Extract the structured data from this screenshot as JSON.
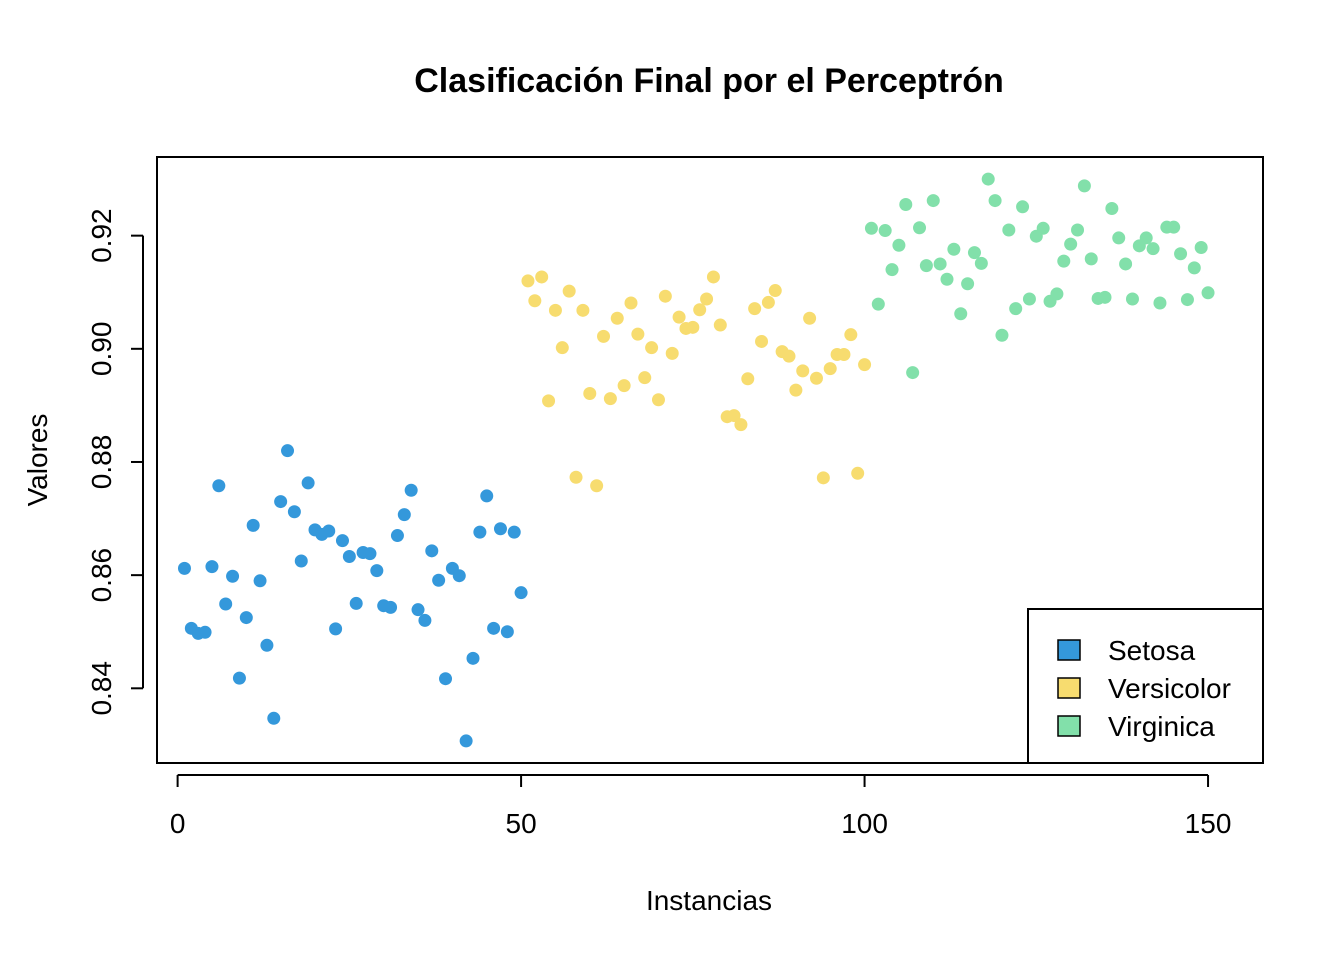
{
  "chart_data": {
    "type": "scatter",
    "title": "Clasificación Final por el Perceptrón",
    "xlabel": "Instancias",
    "ylabel": "Valores",
    "xlim": [
      -3,
      158
    ],
    "ylim": [
      0.8268,
      0.9339
    ],
    "xticks": [
      "0",
      "50",
      "100",
      "150"
    ],
    "xtick_values": [
      0,
      50,
      100,
      150
    ],
    "yticks": [
      "0.84",
      "0.86",
      "0.88",
      "0.90",
      "0.92"
    ],
    "ytick_values": [
      0.84,
      0.86,
      0.88,
      0.9,
      0.92
    ],
    "grid": false,
    "legend_position": "bottom-right",
    "series": [
      {
        "name": "Setosa",
        "color": "#3498DB",
        "x": [
          1,
          2,
          3,
          4,
          5,
          6,
          7,
          8,
          9,
          10,
          11,
          12,
          13,
          14,
          15,
          16,
          17,
          18,
          19,
          20,
          21,
          22,
          23,
          24,
          25,
          26,
          27,
          28,
          29,
          30,
          31,
          32,
          33,
          34,
          35,
          36,
          37,
          38,
          39,
          40,
          41,
          42,
          43,
          44,
          45,
          46,
          47,
          48,
          49,
          50
        ],
        "y": [
          0.8612,
          0.8506,
          0.8497,
          0.8499,
          0.8615,
          0.8758,
          0.8549,
          0.8598,
          0.8418,
          0.8525,
          0.8688,
          0.859,
          0.8476,
          0.8347,
          0.873,
          0.882,
          0.8712,
          0.8625,
          0.8763,
          0.868,
          0.8672,
          0.8678,
          0.8505,
          0.8661,
          0.8633,
          0.855,
          0.864,
          0.8638,
          0.8608,
          0.8546,
          0.8543,
          0.867,
          0.8707,
          0.875,
          0.8539,
          0.852,
          0.8643,
          0.8591,
          0.8417,
          0.8612,
          0.8599,
          0.8307,
          0.8453,
          0.8676,
          0.874,
          0.8506,
          0.8682,
          0.85,
          0.8676,
          0.8569
        ]
      },
      {
        "name": "Versicolor",
        "color": "#F7DC6F",
        "x": [
          51,
          52,
          53,
          54,
          55,
          56,
          57,
          58,
          59,
          60,
          61,
          62,
          63,
          64,
          65,
          66,
          67,
          68,
          69,
          70,
          71,
          72,
          73,
          74,
          75,
          76,
          77,
          78,
          79,
          80,
          81,
          82,
          83,
          84,
          85,
          86,
          87,
          88,
          89,
          90,
          91,
          92,
          93,
          94,
          95,
          96,
          97,
          98,
          99,
          100
        ],
        "y": [
          0.912,
          0.9085,
          0.9127,
          0.8908,
          0.9068,
          0.9002,
          0.9102,
          0.8773,
          0.9068,
          0.8921,
          0.8758,
          0.9022,
          0.8912,
          0.9054,
          0.8935,
          0.9081,
          0.9026,
          0.8949,
          0.9002,
          0.891,
          0.9093,
          0.8992,
          0.9056,
          0.9036,
          0.9038,
          0.9069,
          0.9088,
          0.9127,
          0.9042,
          0.888,
          0.8882,
          0.8866,
          0.8947,
          0.9071,
          0.9013,
          0.9082,
          0.9103,
          0.8995,
          0.8987,
          0.8927,
          0.8961,
          0.9054,
          0.8948,
          0.8772,
          0.8965,
          0.899,
          0.899,
          0.9025,
          0.878,
          0.8972
        ]
      },
      {
        "name": "Virginica",
        "color": "#82E0AA",
        "x": [
          101,
          102,
          103,
          104,
          105,
          106,
          107,
          108,
          109,
          110,
          111,
          112,
          113,
          114,
          115,
          116,
          117,
          118,
          119,
          120,
          121,
          122,
          123,
          124,
          125,
          126,
          127,
          128,
          129,
          130,
          131,
          132,
          133,
          134,
          135,
          136,
          137,
          138,
          139,
          140,
          141,
          142,
          143,
          144,
          145,
          146,
          147,
          148,
          149,
          150
        ],
        "y": [
          0.9213,
          0.9079,
          0.9209,
          0.914,
          0.9183,
          0.9255,
          0.8958,
          0.9214,
          0.9147,
          0.9262,
          0.915,
          0.9123,
          0.9176,
          0.9062,
          0.9115,
          0.917,
          0.9151,
          0.93,
          0.9262,
          0.9024,
          0.921,
          0.9071,
          0.9251,
          0.9088,
          0.9199,
          0.9213,
          0.9084,
          0.9097,
          0.9155,
          0.9185,
          0.921,
          0.9288,
          0.9159,
          0.9089,
          0.9091,
          0.9248,
          0.9196,
          0.915,
          0.9088,
          0.9182,
          0.9196,
          0.9177,
          0.9081,
          0.9215,
          0.9215,
          0.9168,
          0.9087,
          0.9143,
          0.9179,
          0.9099
        ]
      }
    ]
  }
}
